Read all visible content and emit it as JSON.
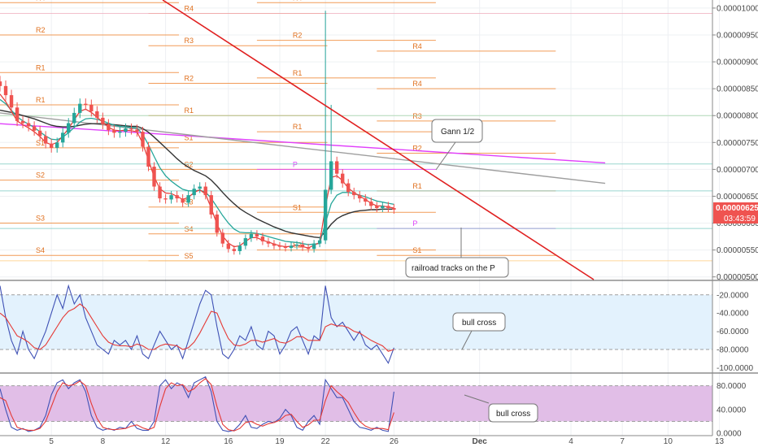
{
  "colors": {
    "up": "#26a69a",
    "down": "#ef5350",
    "trendline": "#e02020",
    "pivot": "#f08a3a",
    "pivot_label": "#e0701e",
    "ema_fast": "#e53935",
    "ema_mid": "#26a69a",
    "ema_slow": "#333333",
    "ma_pink": "#e040fb",
    "ma_gray": "#9e9e9e",
    "price_badge": "#ef5350",
    "osc_blue": "#3f51b5",
    "osc_red": "#e53935",
    "wr_band": "#e3f2fd",
    "stoch_band": "#e1bee7"
  },
  "chart_data": [
    {
      "type": "candlestick",
      "name": "price",
      "x_ticks": [
        "5",
        "8",
        "12",
        "16",
        "19",
        "22",
        "26",
        "Dec",
        "4",
        "7",
        "10",
        "13"
      ],
      "y_ticks": [
        "0.00001000",
        "0.00000950",
        "0.00000900",
        "0.00000850",
        "0.00000800",
        "0.00000750",
        "0.00000700",
        "0.00000650",
        "0.00000600",
        "0.00000550",
        "0.00000500"
      ],
      "ylim": [
        4.95e-06,
        1.015e-05
      ],
      "last_price": "0.00000625",
      "countdown": "03:43:59",
      "pivot_labels": [
        "R4",
        "R3",
        "R2",
        "R1",
        "P",
        "S1",
        "S2",
        "S3",
        "S4",
        "S5"
      ],
      "annotations": [
        "Gann 1/2",
        "railroad tracks on the P"
      ],
      "series": [
        {
          "name": "close",
          "values": [
            8.55e-06,
            8.38e-06,
            8.15e-06,
            7.9e-06,
            7.86e-06,
            7.8e-06,
            7.72e-06,
            7.62e-06,
            7.48e-06,
            7.4e-06,
            7.5e-06,
            7.68e-06,
            7.86e-06,
            8.05e-06,
            8.22e-06,
            8.2e-06,
            8.08e-06,
            7.96e-06,
            7.84e-06,
            7.73e-06,
            7.68e-06,
            7.7e-06,
            7.76e-06,
            7.74e-06,
            7.7e-06,
            7.42e-06,
            7.05e-06,
            6.68e-06,
            6.46e-06,
            6.44e-06,
            6.52e-06,
            6.46e-06,
            6.38e-06,
            6.52e-06,
            6.64e-06,
            6.68e-06,
            6.52e-06,
            6.16e-06,
            5.82e-06,
            5.62e-06,
            5.52e-06,
            5.48e-06,
            5.58e-06,
            5.72e-06,
            5.8e-06,
            5.75e-06,
            5.66e-06,
            5.62e-06,
            5.58e-06,
            5.56e-06,
            5.54e-06,
            5.58e-06,
            5.6e-06,
            5.55e-06,
            5.52e-06,
            5.62e-06,
            5.68e-06,
            6.62e-06,
            7.15e-06,
            6.92e-06,
            6.74e-06,
            6.58e-06,
            6.52e-06,
            6.46e-06,
            6.4e-06,
            6.32e-06,
            6.28e-06,
            6.32e-06,
            6.28e-06,
            6.25e-06
          ]
        },
        {
          "name": "ema_fast",
          "values": [
            8.4e-06,
            8.26e-06,
            8.08e-06,
            7.9e-06,
            7.83e-06,
            7.77e-06,
            7.7e-06,
            7.61e-06,
            7.5e-06,
            7.46e-06,
            7.5e-06,
            7.62e-06,
            7.76e-06,
            7.92e-06,
            8.08e-06,
            8.12e-06,
            8.06e-06,
            7.97e-06,
            7.88e-06,
            7.78e-06,
            7.73e-06,
            7.72e-06,
            7.73e-06,
            7.72e-06,
            7.7e-06,
            7.48e-06,
            7.18e-06,
            6.86e-06,
            6.64e-06,
            6.56e-06,
            6.55e-06,
            6.5e-06,
            6.44e-06,
            6.48e-06,
            6.57e-06,
            6.62e-06,
            6.54e-06,
            6.28e-06,
            5.98e-06,
            5.76e-06,
            5.63e-06,
            5.56e-06,
            5.58e-06,
            5.66e-06,
            5.73e-06,
            5.73e-06,
            5.68e-06,
            5.65e-06,
            5.61e-06,
            5.58e-06,
            5.56e-06,
            5.57e-06,
            5.59e-06,
            5.56e-06,
            5.54e-06,
            5.59e-06,
            5.64e-06,
            6.3e-06,
            6.85e-06,
            6.88e-06,
            6.79e-06,
            6.65e-06,
            6.57e-06,
            6.5e-06,
            6.44e-06,
            6.37e-06,
            6.32e-06,
            6.32e-06,
            6.3e-06,
            6.28e-06
          ]
        },
        {
          "name": "ema_mid",
          "values": [
            8.3e-06,
            8.22e-06,
            8.1e-06,
            7.98e-06,
            7.9e-06,
            7.84e-06,
            7.78e-06,
            7.7e-06,
            7.62e-06,
            7.56e-06,
            7.55e-06,
            7.6e-06,
            7.68e-06,
            7.78e-06,
            7.88e-06,
            7.94e-06,
            7.95e-06,
            7.93e-06,
            7.9e-06,
            7.86e-06,
            7.82e-06,
            7.8e-06,
            7.79e-06,
            7.78e-06,
            7.77e-06,
            7.65e-06,
            7.46e-06,
            7.24e-06,
            7.03e-06,
            6.88e-06,
            6.78e-06,
            6.7e-06,
            6.63e-06,
            6.6e-06,
            6.6e-06,
            6.61e-06,
            6.58e-06,
            6.46e-06,
            6.3e-06,
            6.14e-06,
            6e-06,
            5.89e-06,
            5.83e-06,
            5.82e-06,
            5.82e-06,
            5.81e-06,
            5.78e-06,
            5.75e-06,
            5.72e-06,
            5.69e-06,
            5.66e-06,
            5.65e-06,
            5.64e-06,
            5.62e-06,
            5.6e-06,
            5.61e-06,
            5.62e-06,
            6e-06,
            6.36e-06,
            6.52e-06,
            6.57e-06,
            6.57e-06,
            6.55e-06,
            6.52e-06,
            6.49e-06,
            6.45e-06,
            6.41e-06,
            6.39e-06,
            6.37e-06,
            6.35e-06
          ]
        },
        {
          "name": "ema_slow",
          "values": [
            8.1e-06,
            8.08e-06,
            8.06e-06,
            8.03e-06,
            8e-06,
            7.97e-06,
            7.94e-06,
            7.9e-06,
            7.86e-06,
            7.82e-06,
            7.8e-06,
            7.79e-06,
            7.79e-06,
            7.8e-06,
            7.82e-06,
            7.84e-06,
            7.85e-06,
            7.85e-06,
            7.85e-06,
            7.84e-06,
            7.83e-06,
            7.82e-06,
            7.81e-06,
            7.8e-06,
            7.8e-06,
            7.76e-06,
            7.69e-06,
            7.6e-06,
            7.5e-06,
            7.4e-06,
            7.3e-06,
            7.2e-06,
            7.11e-06,
            7.04e-06,
            6.98e-06,
            6.93e-06,
            6.88e-06,
            6.8e-06,
            6.69e-06,
            6.57e-06,
            6.46e-06,
            6.36e-06,
            6.27e-06,
            6.2e-06,
            6.14e-06,
            6.08e-06,
            6.03e-06,
            5.98e-06,
            5.93e-06,
            5.89e-06,
            5.85e-06,
            5.82e-06,
            5.8e-06,
            5.78e-06,
            5.76e-06,
            5.74e-06,
            5.73e-06,
            5.84e-06,
            5.98e-06,
            6.08e-06,
            6.14e-06,
            6.18e-06,
            6.21e-06,
            6.23e-06,
            6.24e-06,
            6.25e-06,
            6.25e-06,
            6.26e-06,
            6.26e-06,
            6.26e-06
          ]
        },
        {
          "name": "ma_pink",
          "x_range": [
            0,
            106
          ],
          "values": [
            7.85e-06,
            7.12e-06
          ]
        },
        {
          "name": "ma_gray",
          "x_range": [
            0,
            106
          ],
          "values": [
            8.05e-06,
            6.74e-06
          ]
        }
      ]
    },
    {
      "type": "line",
      "name": "williams_r",
      "y_ticks": [
        "-20.0000",
        "-40.0000",
        "-60.0000",
        "-80.0000",
        "-100.0000"
      ],
      "ylim": [
        -105,
        -5
      ],
      "band": [
        -20,
        -80
      ],
      "annotations": [
        "bull cross"
      ],
      "series": [
        {
          "name": "%R",
          "values": [
            -10,
            -45,
            -70,
            -85,
            -60,
            -80,
            -90,
            -75,
            -60,
            -40,
            -20,
            -35,
            -10,
            -30,
            -20,
            -45,
            -60,
            -75,
            -80,
            -85,
            -70,
            -75,
            -70,
            -80,
            -65,
            -85,
            -90,
            -75,
            -60,
            -70,
            -80,
            -75,
            -90,
            -70,
            -50,
            -30,
            -15,
            -20,
            -55,
            -85,
            -90,
            -80,
            -65,
            -70,
            -55,
            -75,
            -80,
            -60,
            -65,
            -85,
            -75,
            -60,
            -55,
            -70,
            -85,
            -65,
            -70,
            -10,
            -45,
            -55,
            -50,
            -60,
            -70,
            -60,
            -75,
            -80,
            -75,
            -85,
            -95,
            -78
          ]
        },
        {
          "name": "signal",
          "values": [
            -40,
            -45,
            -55,
            -65,
            -68,
            -72,
            -78,
            -80,
            -75,
            -65,
            -55,
            -45,
            -38,
            -35,
            -30,
            -35,
            -45,
            -55,
            -65,
            -72,
            -75,
            -76,
            -76,
            -77,
            -74,
            -76,
            -80,
            -80,
            -76,
            -74,
            -75,
            -76,
            -80,
            -78,
            -72,
            -62,
            -50,
            -38,
            -40,
            -55,
            -68,
            -75,
            -76,
            -74,
            -70,
            -70,
            -72,
            -70,
            -68,
            -72,
            -73,
            -70,
            -66,
            -66,
            -70,
            -70,
            -70,
            -55,
            -52,
            -54,
            -54,
            -56,
            -60,
            -62,
            -66,
            -70,
            -73,
            -76,
            -82,
            -80
          ]
        }
      ]
    },
    {
      "type": "line",
      "name": "stochastic",
      "y_ticks": [
        "80.0000",
        "40.0000",
        "0.0000"
      ],
      "ylim": [
        -4,
        100
      ],
      "band": [
        80,
        20
      ],
      "annotations": [
        "bull cross"
      ],
      "series": [
        {
          "name": "%K",
          "values": [
            75,
            40,
            10,
            5,
            8,
            3,
            5,
            10,
            30,
            65,
            85,
            90,
            75,
            85,
            90,
            70,
            30,
            10,
            5,
            8,
            5,
            10,
            8,
            20,
            8,
            5,
            5,
            20,
            80,
            90,
            75,
            85,
            80,
            60,
            85,
            90,
            95,
            70,
            20,
            5,
            3,
            5,
            15,
            30,
            10,
            8,
            15,
            20,
            18,
            25,
            40,
            30,
            10,
            5,
            20,
            30,
            15,
            90,
            75,
            60,
            60,
            40,
            20,
            10,
            8,
            5,
            10,
            5,
            3,
            70
          ]
        },
        {
          "name": "%D",
          "values": [
            60,
            55,
            30,
            10,
            7,
            5,
            5,
            8,
            20,
            45,
            70,
            85,
            80,
            82,
            88,
            80,
            50,
            25,
            10,
            7,
            6,
            7,
            8,
            12,
            14,
            9,
            6,
            10,
            45,
            75,
            85,
            80,
            82,
            70,
            75,
            85,
            92,
            82,
            45,
            15,
            6,
            4,
            8,
            18,
            20,
            15,
            12,
            16,
            18,
            22,
            30,
            32,
            20,
            10,
            14,
            22,
            22,
            55,
            80,
            70,
            62,
            52,
            35,
            20,
            12,
            8,
            8,
            8,
            6,
            35
          ]
        }
      ]
    }
  ]
}
